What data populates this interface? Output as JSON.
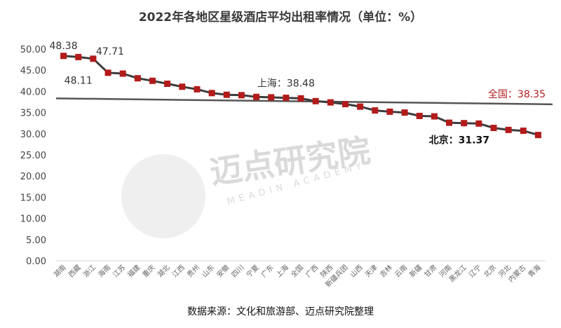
{
  "chart_data": {
    "type": "line",
    "title": "2022年各地区星级酒店平均出租率情况（单位：%）",
    "source": "数据来源：文化和旅游部、迈点研究院整理",
    "ylim": [
      0,
      50
    ],
    "yticks": [
      "0.00",
      "5.00",
      "10.00",
      "15.00",
      "20.00",
      "25.00",
      "30.00",
      "35.00",
      "40.00",
      "45.00",
      "50.00"
    ],
    "grid": false,
    "categories": [
      "湖南",
      "西藏",
      "浙江",
      "海南",
      "江苏",
      "福建",
      "重庆",
      "湖北",
      "江西",
      "贵州",
      "山东",
      "安徽",
      "四川",
      "宁夏",
      "广东",
      "上海",
      "全国",
      "广西",
      "陕西",
      "新疆兵团",
      "山西",
      "天津",
      "吉林",
      "云南",
      "新疆",
      "甘肃",
      "河南",
      "黑龙江",
      "辽宁",
      "北京",
      "河北",
      "内蒙古",
      "青海"
    ],
    "values": [
      48.38,
      48.11,
      47.71,
      44.4,
      44.2,
      43.1,
      42.5,
      41.8,
      41.1,
      40.5,
      39.6,
      39.2,
      39.1,
      38.7,
      38.6,
      38.48,
      38.35,
      37.7,
      37.4,
      37.0,
      36.4,
      35.5,
      35.2,
      35.0,
      34.2,
      34.1,
      32.6,
      32.5,
      32.4,
      31.37,
      30.9,
      30.7,
      29.7
    ],
    "reference_line": {
      "label": "全国：38.35",
      "value": 38.35,
      "start": 38.35,
      "end": 36.95
    },
    "annotations": [
      {
        "text": "48.38",
        "category": "湖南"
      },
      {
        "text": "48.11",
        "category": "西藏"
      },
      {
        "text": "47.71",
        "category": "浙江"
      },
      {
        "text": "上海：38.48",
        "category": "上海"
      },
      {
        "text": "北京：31.37",
        "category": "北京"
      }
    ],
    "colors": {
      "line": "#3c3c3c",
      "marker": "#b31b1b",
      "reference_line": "#555555",
      "reference_label": "#b21f1f"
    }
  },
  "watermark": {
    "text": "迈点研究院",
    "subtext": "MEADIN ACADEMY"
  }
}
